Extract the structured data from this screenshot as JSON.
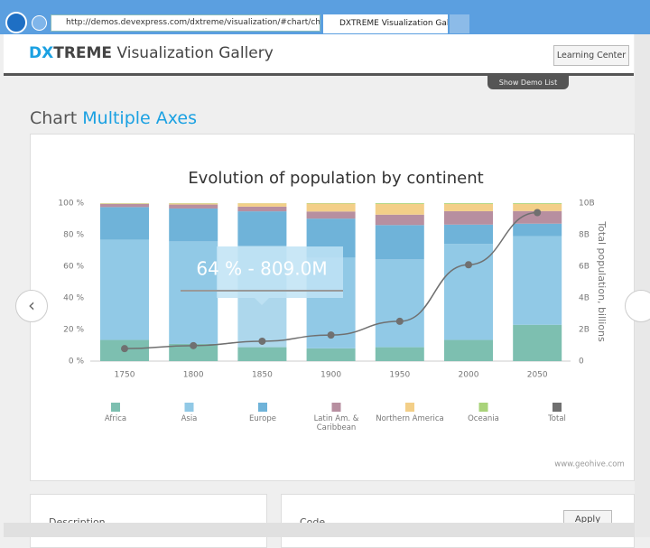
{
  "browser": {
    "address": "http://demos.devexpress.com/dxtreme/visualization/#chart/char",
    "tab_title": "DXTREME Visualization Gall..."
  },
  "header": {
    "logo_dx": "DX",
    "logo_treme": "TREME",
    "logo_rest": "Visualization Gallery",
    "button": "Learning Center",
    "demo_list": "Show Demo List"
  },
  "page": {
    "section": "Chart",
    "demo": "Multiple Axes",
    "panel_left": "Description",
    "panel_right": "Code",
    "apply": "Apply"
  },
  "chart_data": {
    "type": "stacked-bar-line",
    "title": "Evolution of population by continent",
    "categories": [
      "1750",
      "1800",
      "1850",
      "1900",
      "1950",
      "2000",
      "2050"
    ],
    "series": [
      {
        "name": "Africa",
        "color": "#7dbfb0",
        "values": [
          13.4,
          10.9,
          8.8,
          8.1,
          8.8,
          13.4,
          23
        ]
      },
      {
        "name": "Asia",
        "color": "#91c9e6",
        "values": [
          63.5,
          64.9,
          64.1,
          57.4,
          55.6,
          60.8,
          56
        ]
      },
      {
        "name": "Europe",
        "color": "#6fb3d9",
        "values": [
          20.6,
          20.8,
          21.9,
          24.7,
          21.7,
          12.2,
          8
        ]
      },
      {
        "name": "Latin Am. & Caribbean",
        "color": "#b78fa0",
        "values": [
          2.0,
          2.5,
          3.0,
          4.5,
          6.6,
          8.5,
          8
        ]
      },
      {
        "name": "Northern America",
        "color": "#f3cf88",
        "values": [
          0.3,
          0.7,
          2.1,
          5.0,
          6.8,
          4.6,
          4.5
        ]
      },
      {
        "name": "Oceania",
        "color": "#a9d37a",
        "values": [
          0.2,
          0.2,
          0.1,
          0.3,
          0.5,
          0.5,
          0.5
        ]
      },
      {
        "name": "Total",
        "color": "#707070",
        "axis": "y2",
        "values": [
          0.79,
          0.98,
          1.26,
          1.65,
          2.52,
          6.1,
          9.4
        ]
      }
    ],
    "ylim": [
      0,
      100
    ],
    "yticks": [
      {
        "value": 0,
        "label": "0 %"
      },
      {
        "value": 20,
        "label": "20 %"
      },
      {
        "value": 40,
        "label": "40 %"
      },
      {
        "value": 60,
        "label": "60 %"
      },
      {
        "value": 80,
        "label": "80 %"
      },
      {
        "value": 100,
        "label": "100 %"
      }
    ],
    "y2lim": [
      0,
      10
    ],
    "y2ticks": [
      0,
      {
        "value": 2,
        "label": "2B"
      },
      {
        "value": 4,
        "label": "4B"
      },
      {
        "value": 6,
        "label": "6B"
      },
      {
        "value": 8,
        "label": "8B"
      },
      {
        "value": 10,
        "label": "10B"
      }
    ],
    "y2label": "Total population, billions",
    "grid": false,
    "legend": "bottom",
    "tooltip": "64 % - 809.0M",
    "source": "www.geohive.com"
  }
}
